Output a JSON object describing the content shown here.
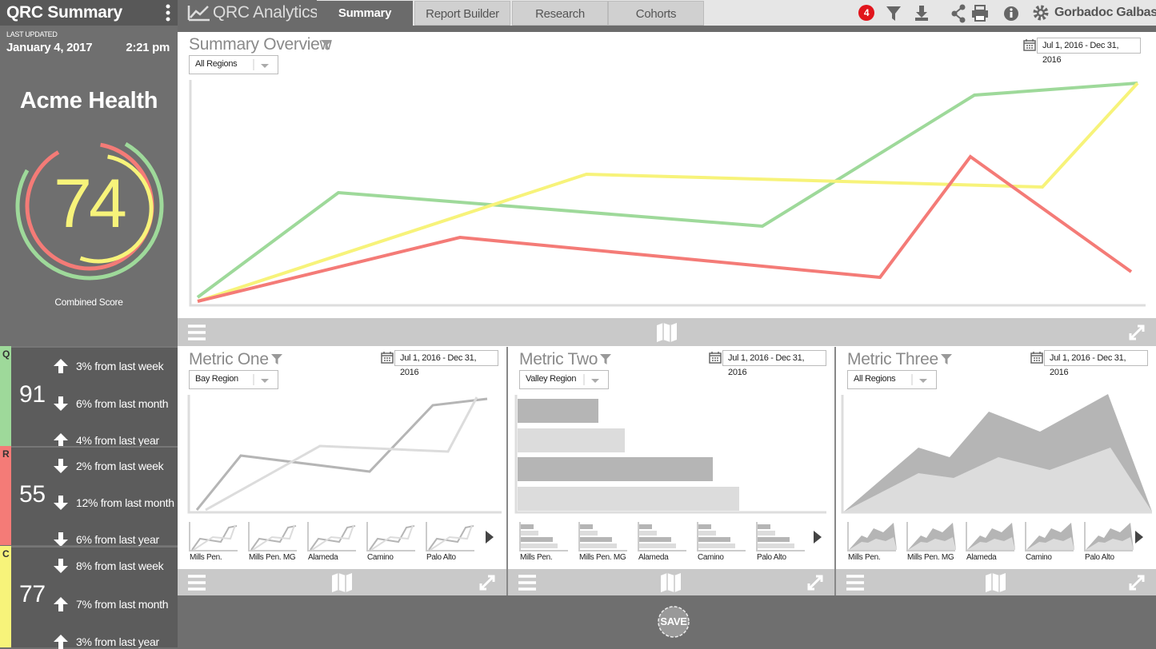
{
  "sidebar": {
    "title": "QRC Summary",
    "last_updated_label": "LAST UPDATED",
    "date": "January 4, 2017",
    "time": "2:21 pm",
    "organization": "Acme Health",
    "score": 74,
    "score_label": "Combined Score",
    "metrics": [
      {
        "letter": "Q",
        "color": "#9ed99a",
        "value": 91,
        "changes": [
          {
            "direction": "up",
            "text": "3% from last week"
          },
          {
            "direction": "down",
            "text": "6% from last month"
          },
          {
            "direction": "up",
            "text": "4% from last year"
          }
        ]
      },
      {
        "letter": "R",
        "color": "#f47b77",
        "value": 55,
        "changes": [
          {
            "direction": "down",
            "text": "2% from last week"
          },
          {
            "direction": "down",
            "text": "12% from last month"
          },
          {
            "direction": "down",
            "text": "6% from last year"
          }
        ]
      },
      {
        "letter": "C",
        "color": "#f7f37a",
        "value": 77,
        "changes": [
          {
            "direction": "down",
            "text": "8% from last week"
          },
          {
            "direction": "up",
            "text": "7% from last month"
          },
          {
            "direction": "up",
            "text": "3% from last year"
          }
        ]
      }
    ]
  },
  "nav": {
    "brand": "QRC Analytics",
    "tabs": [
      "Summary",
      "Report Builder",
      "Research",
      "Cohorts"
    ],
    "notifications": 4,
    "user": "Gorbadoc Galbasi"
  },
  "overview": {
    "title": "Summary Overview",
    "region": "All Regions",
    "date_range": "Jul 1, 2016 - Dec 31, 2016"
  },
  "panels": [
    {
      "title": "Metric One",
      "region": "Bay Region",
      "date_range": "Jul 1, 2016 - Dec 31, 2016",
      "thumbnails": [
        "Mills Pen.",
        "Mills Pen. MG",
        "Alameda",
        "Camino",
        "Palo Alto"
      ]
    },
    {
      "title": "Metric Two",
      "region": "Valley Region",
      "date_range": "Jul 1, 2016 - Dec 31, 2016",
      "thumbnails": [
        "Mills Pen.",
        "Mills Pen. MG",
        "Alameda",
        "Camino",
        "Palo Alto"
      ]
    },
    {
      "title": "Metric Three",
      "region": "All Regions",
      "date_range": "Jul 1, 2016 - Dec 31, 2016",
      "thumbnails": [
        "Mills Pen.",
        "Mills Pen. MG",
        "Alameda",
        "Camino",
        "Palo Alto"
      ]
    }
  ],
  "save": "SAVE"
}
